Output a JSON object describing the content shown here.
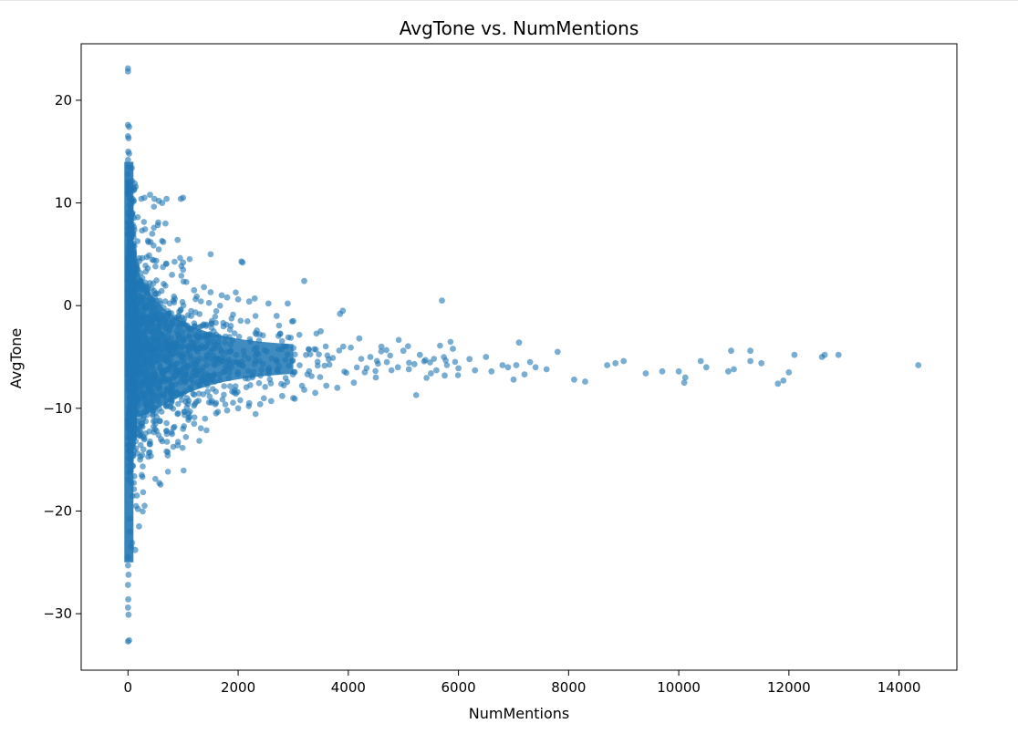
{
  "chart_data": {
    "type": "scatter",
    "title": "AvgTone vs. NumMentions",
    "xlabel": "NumMentions",
    "ylabel": "AvgTone",
    "xlim": [
      -850,
      15050
    ],
    "ylim": [
      -35.5,
      25.5
    ],
    "x_ticks": [
      0,
      2000,
      4000,
      6000,
      8000,
      10000,
      12000,
      14000
    ],
    "y_ticks": [
      -30,
      -20,
      -10,
      0,
      10,
      20
    ],
    "x_tick_labels": [
      "0",
      "2000",
      "4000",
      "6000",
      "8000",
      "10000",
      "12000",
      "14000"
    ],
    "y_tick_labels": [
      "−30",
      "−20",
      "−10",
      "0",
      "10",
      "20"
    ],
    "grid": false,
    "legend": "none",
    "marker_color": "#1f77b4",
    "marker_alpha": 0.6,
    "points": [
      [
        0,
        23.1
      ],
      [
        0,
        22.8
      ],
      [
        0,
        17.6
      ],
      [
        20,
        17.4
      ],
      [
        0,
        16.5
      ],
      [
        10,
        16.3
      ],
      [
        5,
        15.0
      ],
      [
        20,
        14.8
      ],
      [
        0,
        14.2
      ],
      [
        15,
        13.5
      ],
      [
        0,
        12.8
      ],
      [
        10,
        12.0
      ],
      [
        25,
        11.5
      ],
      [
        0,
        10.9
      ],
      [
        30,
        10.5
      ],
      [
        60,
        10.2
      ],
      [
        120,
        11.9
      ],
      [
        80,
        11.2
      ],
      [
        0,
        -24.5
      ],
      [
        0,
        -25.3
      ],
      [
        10,
        -26.2
      ],
      [
        0,
        -27.2
      ],
      [
        5,
        -28.6
      ],
      [
        0,
        -29.4
      ],
      [
        10,
        -30.1
      ],
      [
        0,
        -32.7
      ],
      [
        20,
        -32.6
      ],
      [
        40,
        -22.0
      ],
      [
        60,
        -23.5
      ],
      [
        130,
        -23.8
      ],
      [
        200,
        -21.5
      ],
      [
        180,
        -19.8
      ],
      [
        160,
        -18.5
      ],
      [
        250,
        -16.5
      ],
      [
        220,
        -15.0
      ],
      [
        280,
        -14.0
      ],
      [
        300,
        10.5
      ],
      [
        400,
        10.8
      ],
      [
        480,
        10.4
      ],
      [
        560,
        10.2
      ],
      [
        620,
        10.0
      ],
      [
        700,
        10.4
      ],
      [
        960,
        10.4
      ],
      [
        1000,
        10.5
      ],
      [
        680,
        8.0
      ],
      [
        550,
        8.1
      ],
      [
        440,
        7.0
      ],
      [
        640,
        6.2
      ],
      [
        900,
        6.4
      ],
      [
        1000,
        4.2
      ],
      [
        1500,
        5.0
      ],
      [
        2080,
        4.2
      ],
      [
        2060,
        4.3
      ],
      [
        1000,
        3.5
      ],
      [
        800,
        3.0
      ],
      [
        1200,
        1.5
      ],
      [
        1380,
        1.8
      ],
      [
        1500,
        1.3
      ],
      [
        1700,
        1.0
      ],
      [
        1800,
        0.8
      ],
      [
        2000,
        0.6
      ],
      [
        2200,
        0.4
      ],
      [
        2300,
        0.7
      ],
      [
        2550,
        0.2
      ],
      [
        2900,
        0.2
      ],
      [
        3200,
        2.4
      ],
      [
        2700,
        -1.0
      ],
      [
        3000,
        -1.5
      ],
      [
        3500,
        -2.5
      ],
      [
        3900,
        -0.5
      ],
      [
        3850,
        -0.8
      ],
      [
        4200,
        -3.2
      ],
      [
        4600,
        -4.0
      ],
      [
        5000,
        -4.4
      ],
      [
        5300,
        -4.8
      ],
      [
        5700,
        0.5
      ],
      [
        5900,
        -4.2
      ],
      [
        6200,
        -5.2
      ],
      [
        6500,
        -5.0
      ],
      [
        6800,
        -5.8
      ],
      [
        7100,
        -3.6
      ],
      [
        7300,
        -5.5
      ],
      [
        7600,
        -6.2
      ],
      [
        7800,
        -4.5
      ],
      [
        8100,
        -7.2
      ],
      [
        8300,
        -7.4
      ],
      [
        5600,
        -6.3
      ],
      [
        5750,
        -6.8
      ],
      [
        6000,
        -6.1
      ],
      [
        6300,
        -6.3
      ],
      [
        6600,
        -6.4
      ],
      [
        6900,
        -6.0
      ],
      [
        7200,
        -6.7
      ],
      [
        7000,
        -7.2
      ],
      [
        7050,
        -5.8
      ],
      [
        7400,
        -6.0
      ],
      [
        8700,
        -5.8
      ],
      [
        8850,
        -5.6
      ],
      [
        9000,
        -5.4
      ],
      [
        9400,
        -6.6
      ],
      [
        9700,
        -6.4
      ],
      [
        10000,
        -6.4
      ],
      [
        10100,
        -7.5
      ],
      [
        10120,
        -7.0
      ],
      [
        10400,
        -5.4
      ],
      [
        10500,
        -6.0
      ],
      [
        10900,
        -6.4
      ],
      [
        10950,
        -4.4
      ],
      [
        11000,
        -6.2
      ],
      [
        11300,
        -4.4
      ],
      [
        11300,
        -5.4
      ],
      [
        11500,
        -5.6
      ],
      [
        11800,
        -7.6
      ],
      [
        11900,
        -7.3
      ],
      [
        12000,
        -6.5
      ],
      [
        12100,
        -4.8
      ],
      [
        12600,
        -5.0
      ],
      [
        12650,
        -4.8
      ],
      [
        12900,
        -4.8
      ],
      [
        14350,
        -5.8
      ],
      [
        4400,
        -5.0
      ],
      [
        4700,
        -5.5
      ],
      [
        4900,
        -6.0
      ],
      [
        5100,
        -6.2
      ],
      [
        5200,
        -5.7
      ],
      [
        5400,
        -5.3
      ],
      [
        5500,
        -6.6
      ],
      [
        4300,
        -6.5
      ],
      [
        4500,
        -7.0
      ],
      [
        4100,
        -7.5
      ],
      [
        3800,
        -8.0
      ],
      [
        3600,
        -7.8
      ],
      [
        3400,
        -8.5
      ],
      [
        3200,
        -8.2
      ],
      [
        3000,
        -9.0
      ],
      [
        2800,
        -8.8
      ],
      [
        2600,
        -9.3
      ],
      [
        2400,
        -9.6
      ],
      [
        2200,
        -9.5
      ],
      [
        2000,
        -10.0
      ],
      [
        1800,
        -10.2
      ],
      [
        1600,
        -10.5
      ],
      [
        1400,
        -11.0
      ],
      [
        1200,
        -11.5
      ],
      [
        1000,
        -12.0
      ],
      [
        800,
        -12.5
      ],
      [
        600,
        -13.0
      ],
      [
        400,
        -13.5
      ],
      [
        900,
        -13.6
      ],
      [
        700,
        -14.2
      ]
    ]
  }
}
